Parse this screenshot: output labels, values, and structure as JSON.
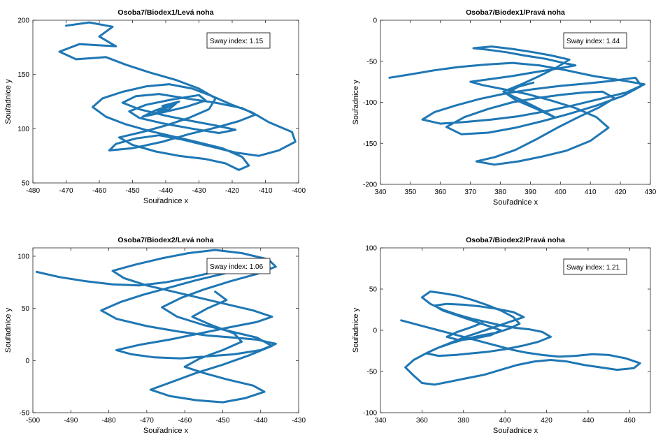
{
  "figure": {
    "background": "#ffffff",
    "line_color": "#1f77b4"
  },
  "chart_data": [
    {
      "type": "line",
      "title": "Osoba7/Biodex1/Levá noha",
      "xlabel": "Souřadnice x",
      "ylabel": "Souřadnice y",
      "xlim": [
        -480,
        -400
      ],
      "ylim": [
        50,
        200
      ],
      "xticks": [
        -480,
        -470,
        -460,
        -450,
        -440,
        -430,
        -420,
        -410,
        -400
      ],
      "yticks": [
        50,
        100,
        150,
        200
      ],
      "annotation": "Sway index: 1.15",
      "grid": false,
      "series": [
        {
          "x": [
            -470,
            -463,
            -456,
            -460,
            -455,
            -466,
            -472,
            -467,
            -458,
            -452,
            -445,
            -437,
            -430,
            -425,
            -427,
            -433,
            -440,
            -447,
            -454,
            -450,
            -443,
            -436,
            -428,
            -422,
            -418,
            -415,
            -417,
            -423,
            -431,
            -438,
            -445,
            -452,
            -458,
            -462,
            -459,
            -453,
            -446,
            -439,
            -432,
            -426,
            -420,
            -414,
            -409,
            -402,
            -401,
            -406,
            -412,
            -419,
            -427,
            -435,
            -442,
            -449,
            -455,
            -457,
            -450,
            -441,
            -433,
            -425,
            -418,
            -413,
            -417,
            -425,
            -434,
            -442,
            -449,
            -453,
            -448,
            -440,
            -432,
            -425,
            -419,
            -424,
            -432,
            -441,
            -448,
            -451,
            -446,
            -438,
            -430,
            -428,
            -434,
            -441,
            -447,
            -443,
            -437,
            -439,
            -444,
            -440,
            -436,
            -441
          ],
          "y": [
            195,
            198,
            194,
            185,
            176,
            178,
            171,
            164,
            166,
            159,
            152,
            145,
            137,
            128,
            118,
            110,
            103,
            97,
            92,
            85,
            79,
            75,
            72,
            68,
            62,
            66,
            74,
            82,
            88,
            93,
            98,
            104,
            111,
            120,
            128,
            134,
            139,
            141,
            137,
            130,
            122,
            115,
            106,
            97,
            88,
            80,
            75,
            78,
            84,
            90,
            94,
            91,
            86,
            80,
            82,
            88,
            95,
            101,
            107,
            113,
            119,
            124,
            128,
            132,
            130,
            124,
            118,
            112,
            107,
            103,
            99,
            96,
            100,
            105,
            110,
            116,
            122,
            127,
            131,
            126,
            120,
            115,
            111,
            117,
            123,
            118,
            113,
            119,
            125,
            121
          ]
        }
      ]
    },
    {
      "type": "line",
      "title": "Osoba7/Biodex1/Pravá noha",
      "xlabel": "Souřadnice x",
      "ylabel": "Souřadnice y",
      "xlim": [
        340,
        430
      ],
      "ylim": [
        -200,
        0
      ],
      "xticks": [
        340,
        350,
        360,
        370,
        380,
        390,
        400,
        410,
        420,
        430
      ],
      "yticks": [
        -200,
        -150,
        -100,
        -50,
        0
      ],
      "annotation": "Sway index: 1.44",
      "grid": false,
      "series": [
        {
          "x": [
            343,
            350,
            358,
            366,
            375,
            384,
            393,
            402,
            411,
            420,
            428,
            422,
            413,
            404,
            395,
            386,
            377,
            368,
            360,
            354,
            358,
            365,
            373,
            382,
            391,
            400,
            409,
            417,
            425,
            427,
            421,
            412,
            403,
            394,
            385,
            376,
            367,
            362,
            368,
            376,
            384,
            392,
            400,
            408,
            414,
            418,
            413,
            406,
            399,
            392,
            385,
            378,
            372,
            378,
            386,
            394,
            402,
            410,
            416,
            412,
            405,
            397,
            389,
            381,
            374,
            370,
            376,
            384,
            392,
            399,
            405,
            401,
            395,
            388,
            382,
            376,
            371,
            377,
            384,
            391,
            397,
            403,
            399,
            393,
            387,
            381,
            385,
            392,
            398,
            394,
            388,
            382,
            386,
            391
          ],
          "y": [
            -70,
            -66,
            -61,
            -57,
            -54,
            -52,
            -55,
            -61,
            -68,
            -73,
            -78,
            -88,
            -96,
            -104,
            -111,
            -117,
            -121,
            -124,
            -126,
            -121,
            -112,
            -104,
            -96,
            -89,
            -84,
            -80,
            -77,
            -74,
            -70,
            -80,
            -92,
            -104,
            -114,
            -123,
            -131,
            -137,
            -139,
            -130,
            -118,
            -108,
            -100,
            -95,
            -91,
            -88,
            -87,
            -95,
            -106,
            -118,
            -131,
            -145,
            -158,
            -167,
            -172,
            -176,
            -172,
            -166,
            -159,
            -147,
            -131,
            -118,
            -107,
            -98,
            -90,
            -84,
            -79,
            -75,
            -72,
            -68,
            -63,
            -59,
            -55,
            -52,
            -47,
            -43,
            -39,
            -36,
            -34,
            -32,
            -35,
            -39,
            -43,
            -48,
            -57,
            -68,
            -78,
            -87,
            -97,
            -108,
            -118,
            -110,
            -99,
            -89,
            -81,
            -76
          ]
        }
      ]
    },
    {
      "type": "line",
      "title": "Osoba7/Biodex2/Levá noha",
      "xlabel": "Souřadnice x",
      "ylabel": "Souřadnice y",
      "xlim": [
        -500,
        -430
      ],
      "ylim": [
        -50,
        108
      ],
      "xticks": [
        -500,
        -490,
        -480,
        -470,
        -460,
        -450,
        -440,
        -430
      ],
      "yticks": [
        -50,
        0,
        50,
        100
      ],
      "annotation": "Sway index: 1.06",
      "grid": false,
      "series": [
        {
          "x": [
            -499,
            -493,
            -486,
            -479,
            -472,
            -465,
            -458,
            -451,
            -444,
            -440,
            -443,
            -450,
            -457,
            -464,
            -471,
            -477,
            -482,
            -478,
            -470,
            -462,
            -454,
            -447,
            -441,
            -436,
            -440,
            -447,
            -454,
            -461,
            -468,
            -474,
            -478,
            -472,
            -464,
            -456,
            -448,
            -441,
            -437,
            -442,
            -449,
            -456,
            -463,
            -470,
            -476,
            -479,
            -473,
            -466,
            -459,
            -452,
            -445,
            -438,
            -436,
            -441,
            -448,
            -455,
            -461,
            -466,
            -462,
            -455,
            -448,
            -441,
            -437,
            -443,
            -450,
            -457,
            -463,
            -469,
            -464,
            -457,
            -450,
            -444,
            -439,
            -442,
            -449,
            -455,
            -460,
            -456,
            -450,
            -445,
            -447,
            -453,
            -458,
            -454,
            -449,
            -452
          ],
          "y": [
            85,
            80,
            76,
            73,
            72,
            75,
            80,
            86,
            91,
            95,
            90,
            83,
            77,
            70,
            63,
            56,
            48,
            40,
            33,
            28,
            24,
            22,
            20,
            16,
            10,
            6,
            4,
            2,
            3,
            6,
            10,
            15,
            20,
            26,
            32,
            37,
            42,
            48,
            54,
            60,
            66,
            72,
            79,
            86,
            92,
            98,
            103,
            106,
            103,
            97,
            90,
            83,
            76,
            68,
            60,
            51,
            42,
            34,
            28,
            22,
            14,
            5,
            -4,
            -12,
            -20,
            -28,
            -34,
            -38,
            -40,
            -36,
            -30,
            -24,
            -18,
            -12,
            -6,
            2,
            10,
            18,
            26,
            34,
            42,
            50,
            58,
            66
          ]
        }
      ]
    },
    {
      "type": "line",
      "title": "Osoba7/Biodex2/Pravá noha",
      "xlabel": "Souřadnice x",
      "ylabel": "Souřadnice y",
      "xlim": [
        340,
        470
      ],
      "ylim": [
        -100,
        100
      ],
      "xticks": [
        340,
        360,
        380,
        400,
        420,
        440,
        460
      ],
      "yticks": [
        -100,
        -50,
        0,
        50,
        100
      ],
      "annotation": "Sway index: 1.21",
      "grid": false,
      "series": [
        {
          "x": [
            350,
            356,
            362,
            368,
            374,
            380,
            386,
            392,
            398,
            404,
            410,
            418,
            426,
            434,
            442,
            450,
            458,
            465,
            462,
            454,
            446,
            438,
            430,
            422,
            414,
            406,
            398,
            390,
            382,
            374,
            366,
            360,
            356,
            352,
            356,
            362,
            368,
            375,
            382,
            389,
            396,
            402,
            407,
            404,
            398,
            391,
            384,
            377,
            370,
            364,
            360,
            364,
            370,
            377,
            384,
            391,
            398,
            405,
            412,
            418,
            422,
            416,
            408,
            400,
            392,
            384,
            376,
            368,
            362,
            367,
            374,
            381,
            388,
            395,
            402,
            409,
            404,
            396,
            388,
            380,
            372,
            366,
            370,
            377,
            384,
            391,
            398,
            393,
            385,
            378,
            372,
            377,
            384,
            389
          ],
          "y": [
            12,
            8,
            4,
            0,
            -4,
            -8,
            -12,
            -16,
            -20,
            -24,
            -27,
            -30,
            -32,
            -31,
            -29,
            -30,
            -34,
            -40,
            -46,
            -48,
            -45,
            -42,
            -38,
            -36,
            -38,
            -42,
            -48,
            -54,
            -58,
            -62,
            -66,
            -64,
            -55,
            -45,
            -36,
            -28,
            -21,
            -15,
            -10,
            -6,
            -3,
            2,
            8,
            16,
            24,
            31,
            37,
            42,
            45,
            47,
            40,
            32,
            25,
            19,
            14,
            10,
            6,
            3,
            1,
            -2,
            -8,
            -14,
            -19,
            -23,
            -26,
            -28,
            -30,
            -31,
            -28,
            -22,
            -15,
            -8,
            -2,
            4,
            10,
            16,
            22,
            26,
            29,
            31,
            32,
            30,
            24,
            18,
            12,
            6,
            0,
            -6,
            -10,
            -12,
            -8,
            -2,
            4,
            9
          ]
        }
      ]
    }
  ]
}
